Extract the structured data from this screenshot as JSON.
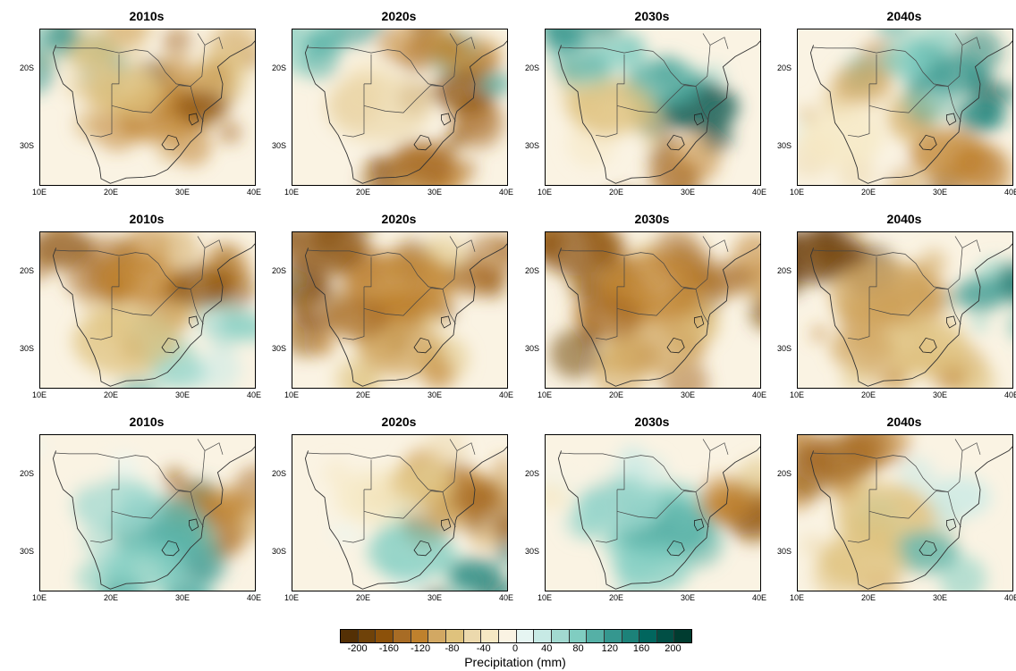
{
  "panels": [
    {
      "title": "2010s",
      "pattern": "drying-east"
    },
    {
      "title": "2020s",
      "pattern": "drying-southeast"
    },
    {
      "title": "2030s",
      "pattern": "wet-east"
    },
    {
      "title": "2040s",
      "pattern": "mixed-wet-northeast"
    },
    {
      "title": "2010s",
      "pattern": "dry-north"
    },
    {
      "title": "2020s",
      "pattern": "dry-widespread"
    },
    {
      "title": "2030s",
      "pattern": "dry-widespread"
    },
    {
      "title": "2040s",
      "pattern": "dry-west-wet-east"
    },
    {
      "title": "2010s",
      "pattern": "wet-south"
    },
    {
      "title": "2020s",
      "pattern": "wet-southeast"
    },
    {
      "title": "2030s",
      "pattern": "wet-south"
    },
    {
      "title": "2040s",
      "pattern": "mixed-dry"
    }
  ],
  "axes": {
    "lat_ticks": [
      "20S",
      "30S"
    ],
    "lon_ticks": [
      "10E",
      "20E",
      "30E",
      "40E"
    ],
    "lon_range": [
      10,
      40
    ],
    "lat_range": [
      -35,
      -15
    ]
  },
  "colorbar": {
    "title": "Precipitation (mm)",
    "tick_labels": [
      "-200",
      "-160",
      "-120",
      "-80",
      "-40",
      "0",
      "40",
      "80",
      "120",
      "160",
      "200"
    ],
    "colors": [
      "#543005",
      "#6f4209",
      "#8c510a",
      "#a86c25",
      "#bf812d",
      "#d2a863",
      "#dfc27d",
      "#ecd9ad",
      "#f6e8c3",
      "#faf3e3",
      "#e6f5f2",
      "#c7eae5",
      "#a2d9d0",
      "#80cdc1",
      "#55b0a6",
      "#35978f",
      "#1c8279",
      "#01665e",
      "#014f45",
      "#003c30"
    ]
  }
}
